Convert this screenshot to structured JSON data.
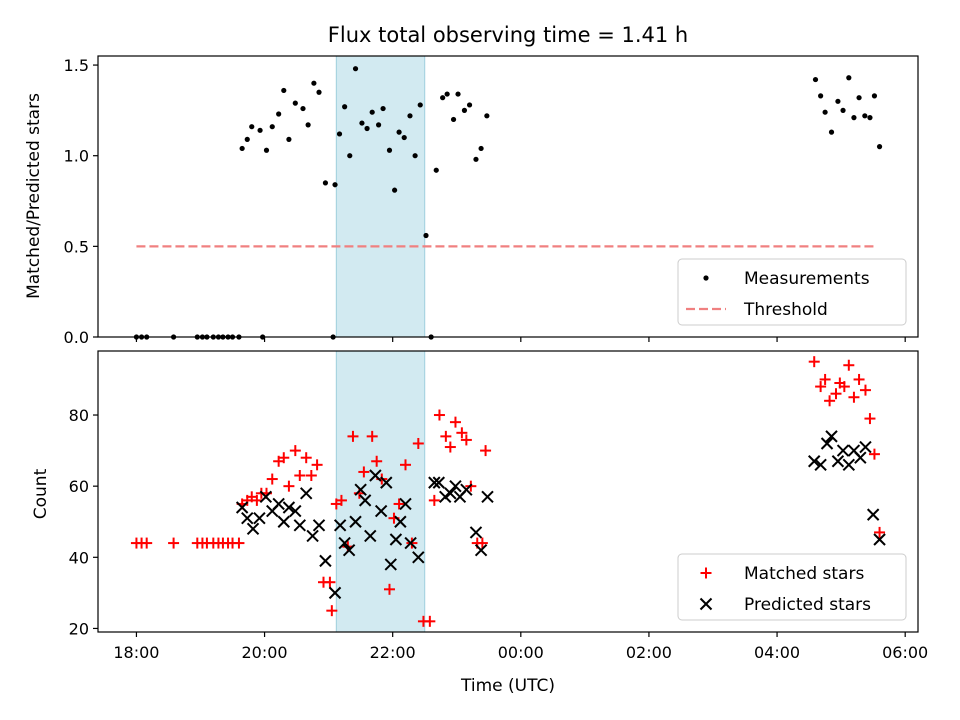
{
  "chart_data": {
    "title": "Flux total observing time = 1.41 h",
    "x_tick_labels": [
      "18:00",
      "20:00",
      "22:00",
      "00:00",
      "02:00",
      "04:00",
      "06:00"
    ],
    "xlabel": "Time (UTC)",
    "xlim_hours": [
      17.4,
      30.2
    ],
    "highlight_span_hours": [
      21.12,
      22.5
    ],
    "colors": {
      "measurements": "#000000",
      "threshold": "#f08080",
      "matched": "#ff0000",
      "predicted": "#000000",
      "highlight": "#add8e6"
    },
    "top": {
      "type": "scatter",
      "ylabel": "Matched/Predicted stars",
      "ylim": [
        0,
        1.55
      ],
      "yticks": [
        0.0,
        0.5,
        1.0,
        1.5
      ],
      "y_tick_labels": [
        "0.0",
        "0.5",
        "1.0",
        "1.5"
      ],
      "legend_position": "bottom-right",
      "legend": [
        "Measurements",
        "Threshold"
      ],
      "threshold": {
        "value": 0.5,
        "x_range_hours": [
          18.0,
          29.55
        ]
      },
      "measurements": [
        [
          18.0,
          0
        ],
        [
          18.08,
          0
        ],
        [
          18.16,
          0
        ],
        [
          18.58,
          0
        ],
        [
          18.95,
          0
        ],
        [
          19.03,
          0
        ],
        [
          19.1,
          0
        ],
        [
          19.2,
          0
        ],
        [
          19.28,
          0
        ],
        [
          19.35,
          0
        ],
        [
          19.43,
          0
        ],
        [
          19.5,
          0
        ],
        [
          19.6,
          0
        ],
        [
          19.97,
          0
        ],
        [
          21.07,
          0
        ],
        [
          22.6,
          0
        ],
        [
          19.65,
          1.04
        ],
        [
          19.73,
          1.09
        ],
        [
          19.8,
          1.16
        ],
        [
          19.93,
          1.14
        ],
        [
          20.03,
          1.03
        ],
        [
          20.12,
          1.16
        ],
        [
          20.22,
          1.23
        ],
        [
          20.3,
          1.36
        ],
        [
          20.38,
          1.09
        ],
        [
          20.48,
          1.29
        ],
        [
          20.6,
          1.26
        ],
        [
          20.68,
          1.17
        ],
        [
          20.77,
          1.4
        ],
        [
          20.85,
          1.35
        ],
        [
          20.95,
          0.85
        ],
        [
          21.1,
          0.84
        ],
        [
          21.17,
          1.12
        ],
        [
          21.25,
          1.27
        ],
        [
          21.33,
          1.0
        ],
        [
          21.42,
          1.48
        ],
        [
          21.52,
          1.18
        ],
        [
          21.6,
          1.15
        ],
        [
          21.68,
          1.24
        ],
        [
          21.78,
          1.17
        ],
        [
          21.85,
          1.26
        ],
        [
          21.95,
          1.03
        ],
        [
          22.03,
          0.81
        ],
        [
          22.1,
          1.13
        ],
        [
          22.18,
          1.1
        ],
        [
          22.27,
          1.22
        ],
        [
          22.35,
          1.0
        ],
        [
          22.43,
          1.28
        ],
        [
          22.52,
          0.56
        ],
        [
          22.68,
          0.92
        ],
        [
          22.78,
          1.32
        ],
        [
          22.85,
          1.34
        ],
        [
          22.95,
          1.2
        ],
        [
          23.02,
          1.34
        ],
        [
          23.12,
          1.25
        ],
        [
          23.2,
          1.28
        ],
        [
          23.3,
          0.98
        ],
        [
          23.38,
          1.04
        ],
        [
          23.47,
          1.22
        ],
        [
          28.6,
          1.42
        ],
        [
          28.68,
          1.33
        ],
        [
          28.75,
          1.24
        ],
        [
          28.85,
          1.13
        ],
        [
          28.95,
          1.3
        ],
        [
          29.03,
          1.25
        ],
        [
          29.12,
          1.43
        ],
        [
          29.2,
          1.21
        ],
        [
          29.28,
          1.32
        ],
        [
          29.37,
          1.22
        ],
        [
          29.45,
          1.21
        ],
        [
          29.52,
          1.33
        ],
        [
          29.6,
          1.05
        ]
      ]
    },
    "bottom": {
      "type": "scatter",
      "ylabel": "Count",
      "ylim": [
        19,
        98
      ],
      "yticks": [
        20,
        40,
        60,
        80
      ],
      "y_tick_labels": [
        "20",
        "40",
        "60",
        "80"
      ],
      "legend_position": "bottom-right",
      "legend": [
        "Matched stars",
        "Predicted stars"
      ],
      "matched": [
        [
          18.0,
          44
        ],
        [
          18.08,
          44
        ],
        [
          18.16,
          44
        ],
        [
          18.58,
          44
        ],
        [
          18.95,
          44
        ],
        [
          19.03,
          44
        ],
        [
          19.1,
          44
        ],
        [
          19.2,
          44
        ],
        [
          19.28,
          44
        ],
        [
          19.35,
          44
        ],
        [
          19.43,
          44
        ],
        [
          19.5,
          44
        ],
        [
          19.6,
          44
        ],
        [
          19.65,
          55
        ],
        [
          19.73,
          56
        ],
        [
          19.8,
          57
        ],
        [
          19.88,
          56
        ],
        [
          19.95,
          58
        ],
        [
          20.03,
          58
        ],
        [
          20.12,
          62
        ],
        [
          20.22,
          67
        ],
        [
          20.3,
          68
        ],
        [
          20.38,
          60
        ],
        [
          20.48,
          70
        ],
        [
          20.55,
          63
        ],
        [
          20.65,
          68
        ],
        [
          20.73,
          63
        ],
        [
          20.82,
          66
        ],
        [
          20.92,
          33
        ],
        [
          21.02,
          33
        ],
        [
          21.05,
          25
        ],
        [
          21.12,
          55
        ],
        [
          21.2,
          56
        ],
        [
          21.3,
          43
        ],
        [
          21.38,
          74
        ],
        [
          21.48,
          58
        ],
        [
          21.55,
          64
        ],
        [
          21.68,
          74
        ],
        [
          21.75,
          67
        ],
        [
          21.83,
          62
        ],
        [
          21.95,
          31
        ],
        [
          22.02,
          51
        ],
        [
          22.1,
          55
        ],
        [
          22.2,
          66
        ],
        [
          22.3,
          44
        ],
        [
          22.4,
          72
        ],
        [
          22.48,
          22
        ],
        [
          22.58,
          22
        ],
        [
          22.65,
          56
        ],
        [
          22.73,
          80
        ],
        [
          22.83,
          74
        ],
        [
          22.9,
          71
        ],
        [
          22.98,
          78
        ],
        [
          23.08,
          75
        ],
        [
          23.15,
          73
        ],
        [
          23.22,
          60
        ],
        [
          23.32,
          44
        ],
        [
          23.4,
          44
        ],
        [
          23.45,
          70
        ],
        [
          28.58,
          95
        ],
        [
          28.68,
          88
        ],
        [
          28.75,
          90
        ],
        [
          28.82,
          84
        ],
        [
          28.92,
          86
        ],
        [
          28.98,
          89
        ],
        [
          29.05,
          88
        ],
        [
          29.12,
          94
        ],
        [
          29.2,
          85
        ],
        [
          29.28,
          90
        ],
        [
          29.38,
          87
        ],
        [
          29.45,
          79
        ],
        [
          29.52,
          69
        ],
        [
          29.6,
          47
        ]
      ],
      "predicted": [
        [
          19.65,
          54
        ],
        [
          19.73,
          51
        ],
        [
          19.82,
          48
        ],
        [
          19.92,
          51
        ],
        [
          20.02,
          57
        ],
        [
          20.12,
          53
        ],
        [
          20.22,
          55
        ],
        [
          20.3,
          50
        ],
        [
          20.38,
          54
        ],
        [
          20.48,
          53
        ],
        [
          20.55,
          49
        ],
        [
          20.65,
          58
        ],
        [
          20.75,
          46
        ],
        [
          20.85,
          49
        ],
        [
          20.95,
          39
        ],
        [
          21.1,
          30
        ],
        [
          21.18,
          49
        ],
        [
          21.25,
          44
        ],
        [
          21.32,
          42
        ],
        [
          21.42,
          50
        ],
        [
          21.5,
          59
        ],
        [
          21.57,
          56
        ],
        [
          21.65,
          46
        ],
        [
          21.73,
          63
        ],
        [
          21.82,
          53
        ],
        [
          21.9,
          61
        ],
        [
          21.97,
          38
        ],
        [
          22.05,
          45
        ],
        [
          22.12,
          50
        ],
        [
          22.2,
          55
        ],
        [
          22.28,
          44
        ],
        [
          22.4,
          40
        ],
        [
          22.65,
          61
        ],
        [
          22.72,
          61
        ],
        [
          22.82,
          57
        ],
        [
          22.9,
          58
        ],
        [
          22.98,
          60
        ],
        [
          23.05,
          57
        ],
        [
          23.15,
          59
        ],
        [
          23.3,
          47
        ],
        [
          23.38,
          42
        ],
        [
          23.48,
          57
        ],
        [
          28.58,
          67
        ],
        [
          28.68,
          66
        ],
        [
          28.78,
          72
        ],
        [
          28.85,
          74
        ],
        [
          28.95,
          67
        ],
        [
          29.03,
          70
        ],
        [
          29.12,
          66
        ],
        [
          29.2,
          70
        ],
        [
          29.3,
          68
        ],
        [
          29.38,
          71
        ],
        [
          29.5,
          52
        ],
        [
          29.6,
          45
        ]
      ]
    }
  }
}
